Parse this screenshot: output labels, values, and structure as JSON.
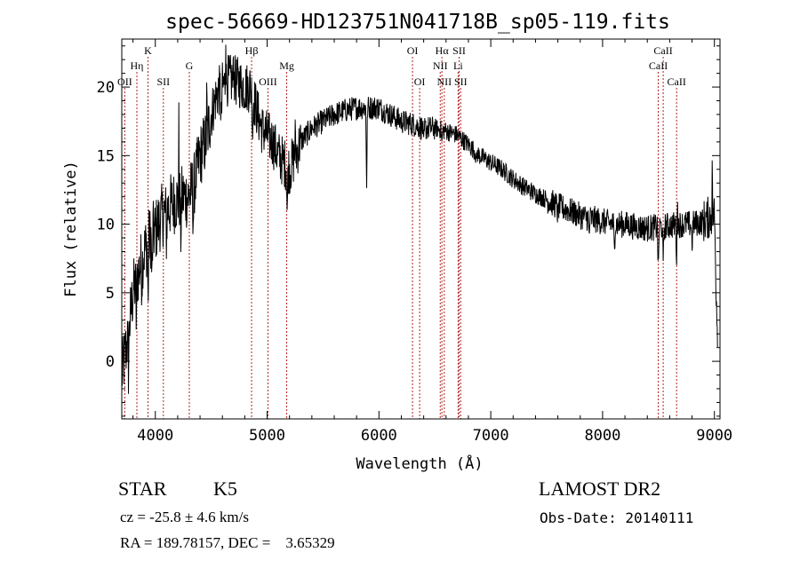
{
  "chart_data": {
    "type": "line",
    "title": "spec-56669-HD123751N041718B_sp05-119.fits",
    "xlabel": "Wavelength (Å)",
    "ylabel": "Flux (relative)",
    "xlim": [
      3700,
      9050
    ],
    "ylim": [
      -4.2,
      23.5
    ],
    "xticks": [
      4000,
      5000,
      6000,
      7000,
      8000,
      9000
    ],
    "yticks": [
      0,
      5,
      10,
      15,
      20
    ],
    "grid": false,
    "line_color": "#000000",
    "marker_color": "#b22222",
    "continuum_anchors": [
      [
        3700,
        -1.0
      ],
      [
        3730,
        0.5
      ],
      [
        3760,
        2.0
      ],
      [
        3800,
        5.0
      ],
      [
        3850,
        6.5
      ],
      [
        3900,
        8.0
      ],
      [
        3950,
        9.0
      ],
      [
        4000,
        9.5
      ],
      [
        4050,
        10.5
      ],
      [
        4100,
        11.0
      ],
      [
        4150,
        11.5
      ],
      [
        4200,
        11.8
      ],
      [
        4250,
        12.0
      ],
      [
        4300,
        12.0
      ],
      [
        4350,
        13.0
      ],
      [
        4400,
        15.0
      ],
      [
        4450,
        16.0
      ],
      [
        4500,
        18.0
      ],
      [
        4550,
        19.5
      ],
      [
        4600,
        20.0
      ],
      [
        4650,
        20.5
      ],
      [
        4700,
        20.5
      ],
      [
        4750,
        20.3
      ],
      [
        4800,
        20.0
      ],
      [
        4850,
        20.0
      ],
      [
        4900,
        18.5
      ],
      [
        4950,
        17.0
      ],
      [
        5000,
        16.5
      ],
      [
        5050,
        16.0
      ],
      [
        5100,
        15.0
      ],
      [
        5150,
        14.5
      ],
      [
        5200,
        14.0
      ],
      [
        5250,
        15.0
      ],
      [
        5300,
        16.0
      ],
      [
        5400,
        17.0
      ],
      [
        5500,
        17.5
      ],
      [
        5600,
        18.0
      ],
      [
        5700,
        18.3
      ],
      [
        5800,
        18.5
      ],
      [
        5900,
        18.5
      ],
      [
        6000,
        18.5
      ],
      [
        6100,
        18.0
      ],
      [
        6200,
        17.5
      ],
      [
        6300,
        17.3
      ],
      [
        6400,
        17.0
      ],
      [
        6500,
        17.0
      ],
      [
        6600,
        16.8
      ],
      [
        6700,
        16.5
      ],
      [
        6800,
        15.8
      ],
      [
        6900,
        15.0
      ],
      [
        7000,
        14.5
      ],
      [
        7100,
        14.0
      ],
      [
        7200,
        13.3
      ],
      [
        7300,
        12.7
      ],
      [
        7400,
        12.2
      ],
      [
        7500,
        11.8
      ],
      [
        7600,
        11.3
      ],
      [
        7700,
        11.0
      ],
      [
        7800,
        10.6
      ],
      [
        7900,
        10.4
      ],
      [
        8000,
        10.2
      ],
      [
        8100,
        10.0
      ],
      [
        8200,
        10.0
      ],
      [
        8300,
        9.8
      ],
      [
        8400,
        9.7
      ],
      [
        8500,
        9.8
      ],
      [
        8600,
        9.9
      ],
      [
        8700,
        10.0
      ],
      [
        8800,
        10.0
      ],
      [
        8900,
        10.2
      ],
      [
        8950,
        10.5
      ],
      [
        9000,
        10.8
      ],
      [
        9020,
        4.0
      ],
      [
        9030,
        2.0
      ]
    ],
    "absorption_features": [
      [
        3760,
        -2.5
      ],
      [
        3830,
        -3.0
      ],
      [
        3880,
        -1.5
      ],
      [
        3935,
        -4.5
      ],
      [
        3970,
        -3.5
      ],
      [
        4100,
        -2.0
      ],
      [
        4227,
        -3.0
      ],
      [
        4340,
        -2.5
      ],
      [
        4590,
        -3.0
      ],
      [
        4870,
        -2.5
      ],
      [
        5180,
        -3.5
      ],
      [
        5890,
        -5.5
      ],
      [
        6400,
        -1.5
      ],
      [
        6563,
        -1.0
      ],
      [
        6870,
        -0.8
      ],
      [
        7600,
        -0.8
      ],
      [
        7880,
        -1.5
      ],
      [
        8105,
        -2.0
      ],
      [
        8498,
        -3.5
      ],
      [
        8542,
        -3.0
      ],
      [
        8662,
        -2.5
      ],
      [
        8800,
        -1.5
      ]
    ],
    "spikes": [
      [
        4210,
        5.0
      ],
      [
        4460,
        3.0
      ],
      [
        4630,
        4.5
      ],
      [
        4700,
        2.5
      ],
      [
        5250,
        2.0
      ],
      [
        8670,
        3.5
      ],
      [
        8980,
        4.0
      ]
    ],
    "line_markers_top": [
      {
        "label": "K",
        "x": 3934,
        "row": 0
      },
      {
        "label": "Hη",
        "x": 3835,
        "row": 1
      },
      {
        "label": "OII",
        "x": 3727,
        "row": 2
      },
      {
        "label": "SII",
        "x": 4072,
        "row": 2
      },
      {
        "label": "G",
        "x": 4304,
        "row": 1
      },
      {
        "label": "Hβ",
        "x": 4861,
        "row": 0
      },
      {
        "label": "OIII",
        "x": 5007,
        "row": 2
      },
      {
        "label": "Mg",
        "x": 5175,
        "row": 1
      },
      {
        "label": "OI",
        "x": 6300,
        "row": 0
      },
      {
        "label": "OI",
        "x": 6364,
        "row": 2
      },
      {
        "label": "Hα",
        "x": 6563,
        "row": 0
      },
      {
        "label": "NII",
        "x": 6548,
        "row": 1
      },
      {
        "label": "NII",
        "x": 6584,
        "row": 2
      },
      {
        "label": "SII",
        "x": 6717,
        "row": 0
      },
      {
        "label": "Li",
        "x": 6708,
        "row": 1
      },
      {
        "label": "SII",
        "x": 6731,
        "row": 2
      },
      {
        "label": "CaII",
        "x": 8542,
        "row": 0
      },
      {
        "label": "CaII",
        "x": 8498,
        "row": 1
      },
      {
        "label": "CaII",
        "x": 8662,
        "row": 2
      }
    ]
  },
  "footer": {
    "class_label": "STAR",
    "subclass": "K5",
    "survey": "LAMOST DR2",
    "cz_line": "cz = -25.8 ± 4.6 km/s",
    "obs_date_line": "Obs-Date: 20140111",
    "radec_line": "RA = 189.78157, DEC =    3.65329"
  }
}
